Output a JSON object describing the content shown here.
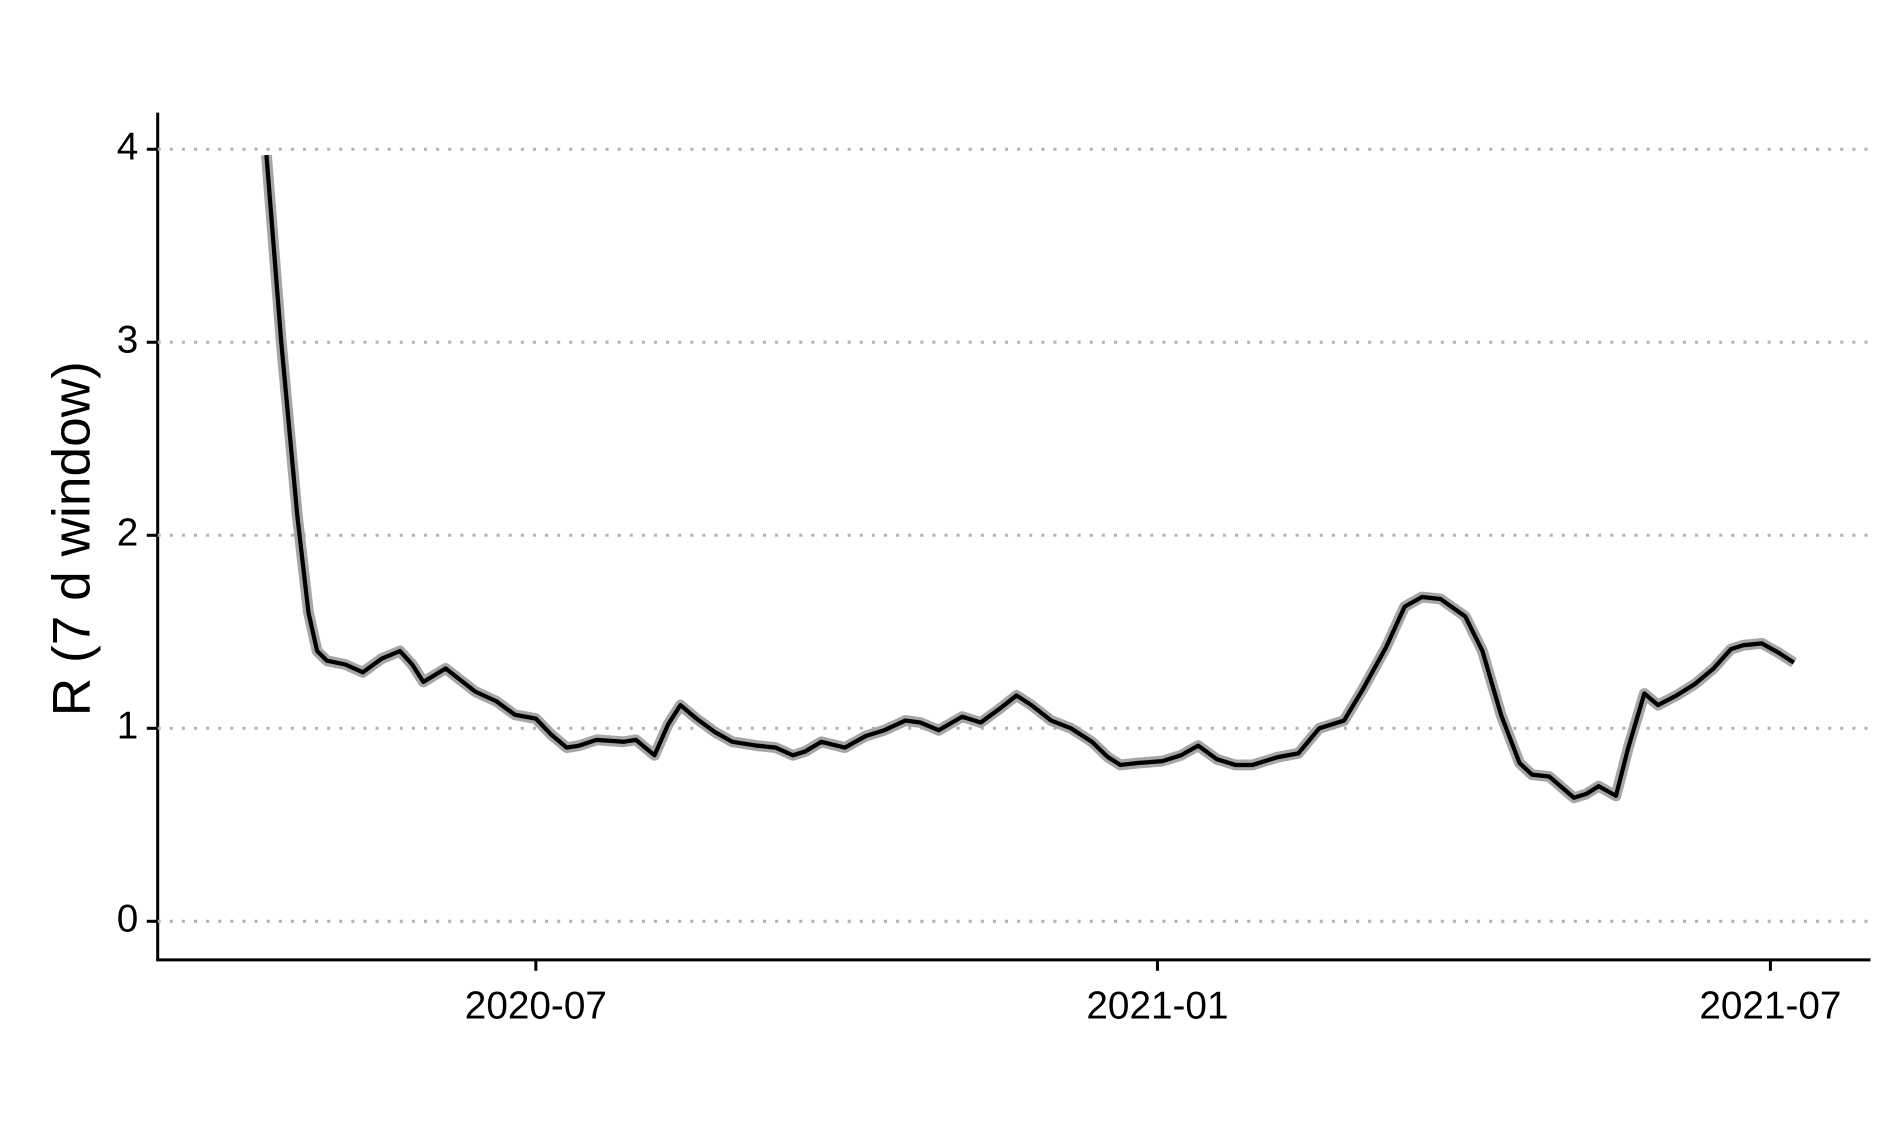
{
  "chart_data": {
    "type": "line",
    "y_label": "R (7 d window)",
    "x": [
      2020.279,
      2020.291,
      2020.304,
      2020.313,
      2020.32,
      2020.328,
      2020.343,
      2020.357,
      2020.372,
      2020.387,
      2020.397,
      2020.406,
      2020.424,
      2020.436,
      2020.448,
      2020.465,
      2020.48,
      2020.497,
      2020.509,
      2020.522,
      2020.532,
      2020.546,
      2020.568,
      2020.578,
      2020.593,
      2020.604,
      2020.614,
      2020.627,
      2020.642,
      2020.656,
      2020.676,
      2020.691,
      2020.705,
      2020.715,
      2020.728,
      2020.747,
      2020.764,
      2020.779,
      2020.796,
      2020.808,
      2020.823,
      2020.842,
      2020.857,
      2020.872,
      2020.886,
      2020.898,
      2020.914,
      2020.93,
      2020.947,
      2020.96,
      2020.97,
      2020.984,
      2021.004,
      2021.019,
      2021.033,
      2021.048,
      2021.063,
      2021.077,
      2021.097,
      2021.114,
      2021.131,
      2021.151,
      2021.166,
      2021.185,
      2021.2,
      2021.214,
      2021.229,
      2021.249,
      2021.263,
      2021.278,
      2021.293,
      2021.303,
      2021.317,
      2021.337,
      2021.347,
      2021.357,
      2021.371,
      2021.381,
      2021.394,
      2021.405,
      2021.42,
      2021.435,
      2021.45,
      2021.464,
      2021.474,
      2021.489,
      2021.503,
      2021.515
    ],
    "series": [
      {
        "color": "#000000",
        "values": [
          3.97,
          3.0,
          2.1,
          1.6,
          1.4,
          1.35,
          1.33,
          1.29,
          1.36,
          1.4,
          1.33,
          1.24,
          1.31,
          1.25,
          1.19,
          1.14,
          1.07,
          1.05,
          0.97,
          0.9,
          0.91,
          0.94,
          0.93,
          0.94,
          0.86,
          1.02,
          1.12,
          1.05,
          0.98,
          0.93,
          0.91,
          0.9,
          0.86,
          0.88,
          0.93,
          0.9,
          0.96,
          0.99,
          1.04,
          1.03,
          0.99,
          1.06,
          1.03,
          1.1,
          1.17,
          1.12,
          1.04,
          1.0,
          0.93,
          0.85,
          0.81,
          0.82,
          0.83,
          0.86,
          0.91,
          0.84,
          0.81,
          0.81,
          0.85,
          0.87,
          1.0,
          1.04,
          1.2,
          1.42,
          1.63,
          1.68,
          1.67,
          1.58,
          1.4,
          1.07,
          0.82,
          0.76,
          0.75,
          0.64,
          0.66,
          0.7,
          0.65,
          0.9,
          1.18,
          1.12,
          1.17,
          1.23,
          1.31,
          1.41,
          1.43,
          1.44,
          1.39,
          1.34
        ]
      }
    ],
    "xlim": [
      2020.191,
      2021.577
    ],
    "xticks": [
      {
        "value": 2020.497,
        "label": "2020-07"
      },
      {
        "value": 2021.0,
        "label": "2021-01"
      },
      {
        "value": 2021.496,
        "label": "2021-07"
      }
    ],
    "ylim": [
      -0.2,
      4.19
    ],
    "yticks": [
      0,
      1,
      2,
      3,
      4
    ],
    "grid": true
  }
}
